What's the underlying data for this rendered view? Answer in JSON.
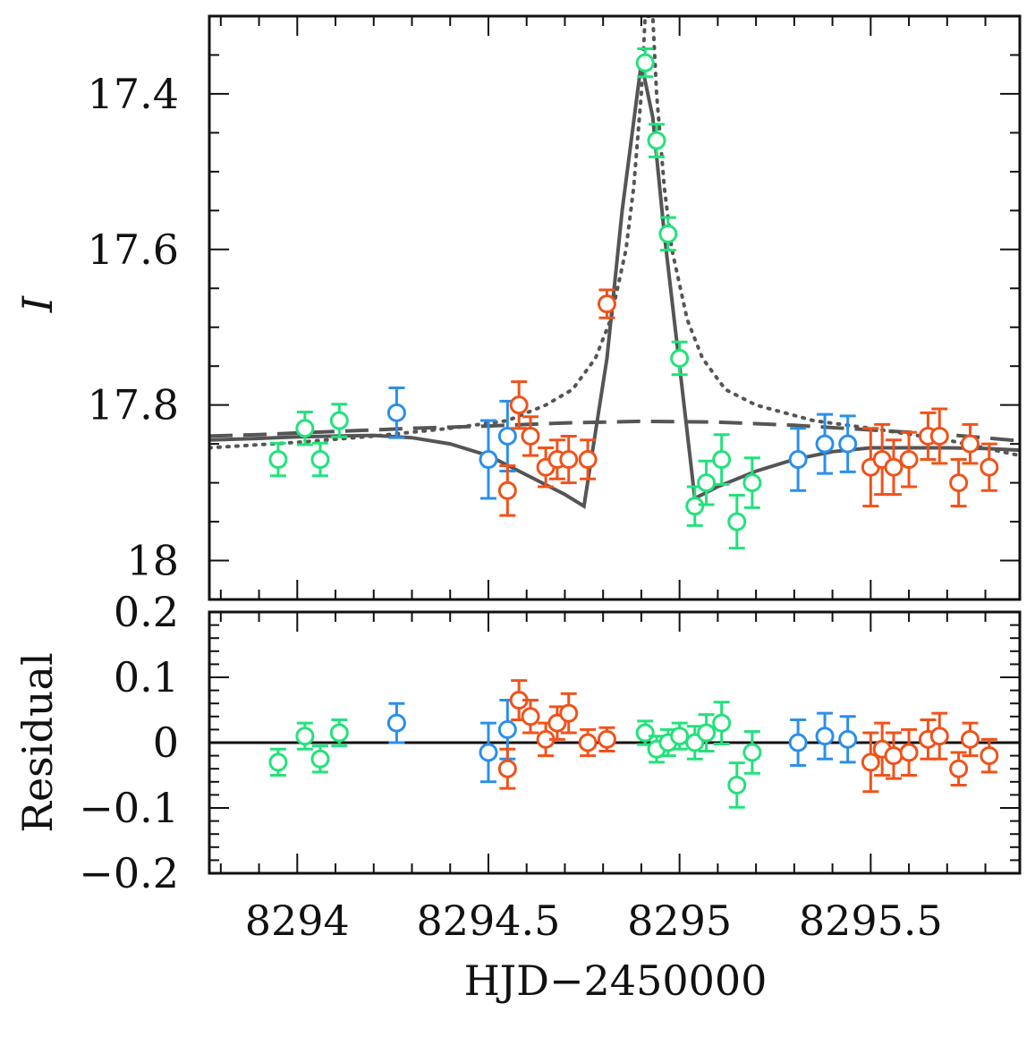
{
  "chart_data": [
    {
      "type": "scatter",
      "panel": "top",
      "ylabel": "I",
      "xlim": [
        8293.77,
        8295.89
      ],
      "ylim": [
        17.3,
        18.05
      ],
      "y_inverted": true,
      "yticks": [
        17.4,
        17.6,
        17.8,
        18.0
      ],
      "ytick_labels": [
        "17.4",
        "17.6",
        "17.8",
        "18"
      ],
      "colors": {
        "green": "#22e27a",
        "blue": "#2b8fea",
        "orange": "#f0521a",
        "model": "#555555"
      },
      "series": [
        {
          "color_key": "green",
          "points": [
            [
              8293.95,
              17.87,
              0.021
            ],
            [
              8294.02,
              17.83,
              0.021
            ],
            [
              8294.06,
              17.87,
              0.021
            ],
            [
              8294.11,
              17.82,
              0.021
            ],
            [
              8294.91,
              17.36,
              0.018
            ],
            [
              8294.94,
              17.46,
              0.021
            ],
            [
              8294.97,
              17.58,
              0.021
            ],
            [
              8295.0,
              17.74,
              0.021
            ],
            [
              8295.04,
              17.93,
              0.025
            ],
            [
              8295.07,
              17.9,
              0.028
            ],
            [
              8295.11,
              17.87,
              0.032
            ],
            [
              8295.15,
              17.95,
              0.034
            ],
            [
              8295.19,
              17.9,
              0.032
            ]
          ]
        },
        {
          "color_key": "blue",
          "points": [
            [
              8294.26,
              17.81,
              0.032
            ],
            [
              8294.5,
              17.87,
              0.05
            ],
            [
              8294.55,
              17.84,
              0.045
            ],
            [
              8295.31,
              17.87,
              0.04
            ],
            [
              8295.38,
              17.85,
              0.038
            ],
            [
              8295.44,
              17.85,
              0.036
            ]
          ]
        },
        {
          "color_key": "orange",
          "points": [
            [
              8294.55,
              17.91,
              0.032
            ],
            [
              8294.58,
              17.8,
              0.03
            ],
            [
              8294.61,
              17.84,
              0.025
            ],
            [
              8294.65,
              17.88,
              0.025
            ],
            [
              8294.68,
              17.87,
              0.025
            ],
            [
              8294.71,
              17.87,
              0.03
            ],
            [
              8294.76,
              17.87,
              0.025
            ],
            [
              8294.81,
              17.67,
              0.018
            ],
            [
              8295.5,
              17.88,
              0.05
            ],
            [
              8295.53,
              17.87,
              0.045
            ],
            [
              8295.56,
              17.88,
              0.035
            ],
            [
              8295.6,
              17.87,
              0.035
            ],
            [
              8295.65,
              17.84,
              0.03
            ],
            [
              8295.68,
              17.84,
              0.035
            ],
            [
              8295.73,
              17.9,
              0.03
            ],
            [
              8295.76,
              17.85,
              0.025
            ],
            [
              8295.81,
              17.88,
              0.03
            ]
          ]
        }
      ],
      "models": [
        {
          "style": "solid",
          "points": [
            [
              8293.77,
              17.845
            ],
            [
              8293.9,
              17.843
            ],
            [
              8294.0,
              17.841
            ],
            [
              8294.1,
              17.84
            ],
            [
              8294.2,
              17.839
            ],
            [
              8294.3,
              17.842
            ],
            [
              8294.4,
              17.85
            ],
            [
              8294.5,
              17.865
            ],
            [
              8294.6,
              17.89
            ],
            [
              8294.7,
              17.915
            ],
            [
              8294.75,
              17.93
            ],
            [
              8294.81,
              17.74
            ],
            [
              8294.85,
              17.55
            ],
            [
              8294.9,
              17.36
            ],
            [
              8294.93,
              17.43
            ],
            [
              8294.96,
              17.58
            ],
            [
              8295.0,
              17.75
            ],
            [
              8295.04,
              17.92
            ],
            [
              8295.1,
              17.905
            ],
            [
              8295.2,
              17.885
            ],
            [
              8295.3,
              17.87
            ],
            [
              8295.4,
              17.86
            ],
            [
              8295.5,
              17.855
            ],
            [
              8295.6,
              17.855
            ],
            [
              8295.7,
              17.855
            ],
            [
              8295.8,
              17.856
            ],
            [
              8295.89,
              17.858
            ]
          ]
        },
        {
          "style": "dashed",
          "points": [
            [
              8293.77,
              17.84
            ],
            [
              8293.9,
              17.838
            ],
            [
              8294.1,
              17.834
            ],
            [
              8294.3,
              17.83
            ],
            [
              8294.5,
              17.827
            ],
            [
              8294.7,
              17.823
            ],
            [
              8294.9,
              17.821
            ],
            [
              8295.1,
              17.822
            ],
            [
              8295.3,
              17.826
            ],
            [
              8295.5,
              17.832
            ],
            [
              8295.7,
              17.838
            ],
            [
              8295.89,
              17.846
            ]
          ]
        },
        {
          "style": "dotted",
          "points": [
            [
              8293.77,
              17.855
            ],
            [
              8294.0,
              17.848
            ],
            [
              8294.2,
              17.84
            ],
            [
              8294.4,
              17.83
            ],
            [
              8294.55,
              17.82
            ],
            [
              8294.65,
              17.8
            ],
            [
              8294.72,
              17.78
            ],
            [
              8294.78,
              17.74
            ],
            [
              8294.82,
              17.69
            ],
            [
              8294.86,
              17.6
            ],
            [
              8294.88,
              17.52
            ],
            [
              8294.9,
              17.4
            ],
            [
              8294.91,
              17.3
            ],
            [
              8294.93,
              17.3
            ],
            [
              8294.94,
              17.4
            ],
            [
              8294.96,
              17.52
            ],
            [
              8294.98,
              17.6
            ],
            [
              8295.02,
              17.69
            ],
            [
              8295.06,
              17.74
            ],
            [
              8295.12,
              17.78
            ],
            [
              8295.2,
              17.8
            ],
            [
              8295.35,
              17.82
            ],
            [
              8295.5,
              17.83
            ],
            [
              8295.7,
              17.845
            ],
            [
              8295.89,
              17.865
            ]
          ]
        }
      ]
    },
    {
      "type": "scatter",
      "panel": "bottom",
      "ylabel": "Residual",
      "xlabel": "HJD−2450000",
      "xlim": [
        8293.77,
        8295.89
      ],
      "ylim": [
        -0.2,
        0.2
      ],
      "yticks": [
        -0.2,
        -0.1,
        0,
        0.1,
        0.2
      ],
      "ytick_labels": [
        "−0.2",
        "−0.1",
        "0",
        "0.1",
        "0.2"
      ],
      "xticks": [
        8294,
        8294.5,
        8295,
        8295.5
      ],
      "xtick_labels": [
        "8294",
        "8294.5",
        "8295",
        "8295.5"
      ],
      "zero_line": true,
      "series": [
        {
          "color_key": "green",
          "points": [
            [
              8293.95,
              -0.03,
              0.02
            ],
            [
              8294.02,
              0.01,
              0.02
            ],
            [
              8294.06,
              -0.025,
              0.02
            ],
            [
              8294.11,
              0.015,
              0.02
            ],
            [
              8294.91,
              0.015,
              0.018
            ],
            [
              8294.94,
              -0.01,
              0.02
            ],
            [
              8294.97,
              0.0,
              0.02
            ],
            [
              8295.0,
              0.01,
              0.02
            ],
            [
              8295.04,
              0.0,
              0.025
            ],
            [
              8295.07,
              0.015,
              0.028
            ],
            [
              8295.11,
              0.03,
              0.032
            ],
            [
              8295.15,
              -0.065,
              0.034
            ],
            [
              8295.19,
              -0.015,
              0.032
            ]
          ]
        },
        {
          "color_key": "blue",
          "points": [
            [
              8294.26,
              0.03,
              0.03
            ],
            [
              8294.5,
              -0.015,
              0.045
            ],
            [
              8294.55,
              0.02,
              0.045
            ],
            [
              8295.31,
              0.0,
              0.035
            ],
            [
              8295.38,
              0.01,
              0.035
            ],
            [
              8295.44,
              0.005,
              0.035
            ]
          ]
        },
        {
          "color_key": "orange",
          "points": [
            [
              8294.55,
              -0.04,
              0.03
            ],
            [
              8294.58,
              0.065,
              0.03
            ],
            [
              8294.61,
              0.04,
              0.025
            ],
            [
              8294.65,
              0.005,
              0.025
            ],
            [
              8294.68,
              0.03,
              0.025
            ],
            [
              8294.71,
              0.045,
              0.03
            ],
            [
              8294.76,
              0.0,
              0.02
            ],
            [
              8294.81,
              0.005,
              0.018
            ],
            [
              8295.5,
              -0.03,
              0.045
            ],
            [
              8295.53,
              -0.01,
              0.04
            ],
            [
              8295.56,
              -0.02,
              0.035
            ],
            [
              8295.6,
              -0.015,
              0.035
            ],
            [
              8295.65,
              0.005,
              0.03
            ],
            [
              8295.68,
              0.01,
              0.035
            ],
            [
              8295.73,
              -0.04,
              0.025
            ],
            [
              8295.76,
              0.005,
              0.025
            ],
            [
              8295.81,
              -0.02,
              0.025
            ]
          ]
        }
      ]
    }
  ]
}
